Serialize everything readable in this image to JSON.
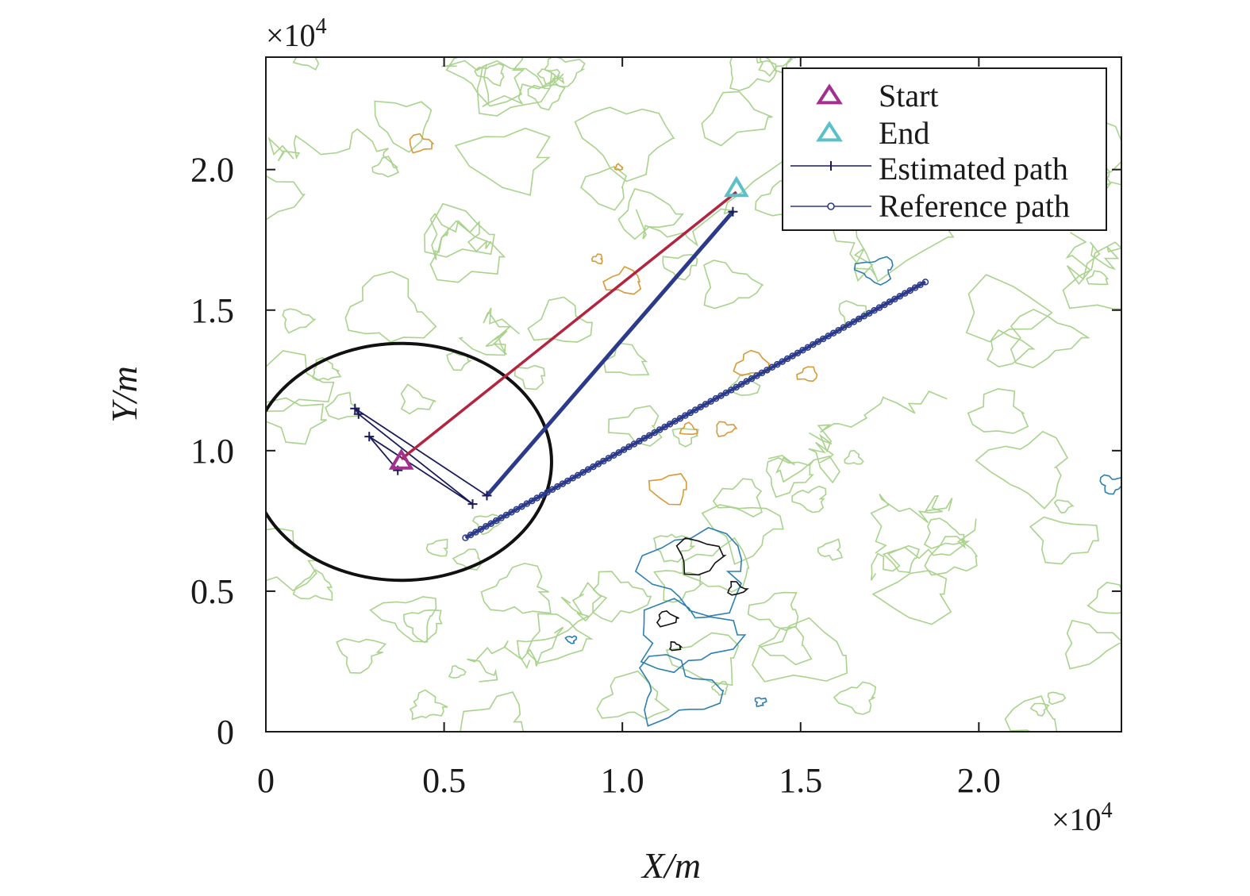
{
  "chart_data": {
    "type": "line",
    "xlabel": "X/m",
    "ylabel": "Y/m",
    "x_multiplier": "×10",
    "x_multiplier_exp": "4",
    "y_multiplier": "×10",
    "y_multiplier_exp": "4",
    "xlim": [
      0,
      24000
    ],
    "ylim": [
      0,
      24000
    ],
    "x_ticks": [
      0,
      5000,
      10000,
      15000,
      20000
    ],
    "x_tick_labels": [
      "0",
      "0.5",
      "1.0",
      "1.5",
      "2.0"
    ],
    "y_ticks": [
      0,
      5000,
      10000,
      15000,
      20000
    ],
    "y_tick_labels": [
      "0",
      "0.5",
      "1.0",
      "1.5",
      "2.0"
    ],
    "grid": false,
    "legend_position": "top-right",
    "legend": [
      {
        "label": "Start",
        "marker": "triangle",
        "color": "#a3308f"
      },
      {
        "label": "End",
        "marker": "triangle",
        "color": "#5bc0c8"
      },
      {
        "label": "Estimated path",
        "marker": "plus",
        "color": "#1a1a5a"
      },
      {
        "label": "Reference path",
        "marker": "circle",
        "color": "#2b3a8a"
      }
    ],
    "markers": {
      "start": {
        "x": 3800,
        "y": 9600
      },
      "end": {
        "x": 13200,
        "y": 19300
      }
    },
    "series": [
      {
        "name": "Estimated path",
        "color": "#2b3a8a",
        "x": [
          13100,
          6200,
          2500,
          2600,
          5800,
          2900,
          3700
        ],
        "y": [
          18500,
          8400,
          11500,
          11300,
          8100,
          10500,
          9300
        ]
      },
      {
        "name": "Reference path",
        "color": "#2b3a8a",
        "x": [
          18500,
          5600
        ],
        "y": [
          16000,
          6900
        ]
      },
      {
        "color": "#b32440",
        "x": [
          3800,
          13200
        ],
        "y": [
          9700,
          19200
        ]
      }
    ],
    "circle": {
      "cx": 3800,
      "cy": 9600,
      "r": 4300,
      "color": "#111111"
    },
    "background": "terrain contour map",
    "contour_colors": {
      "green": "#a9d38c",
      "orange": "#d79a37",
      "blue": "#2d7fb0",
      "black": "#111111"
    }
  }
}
